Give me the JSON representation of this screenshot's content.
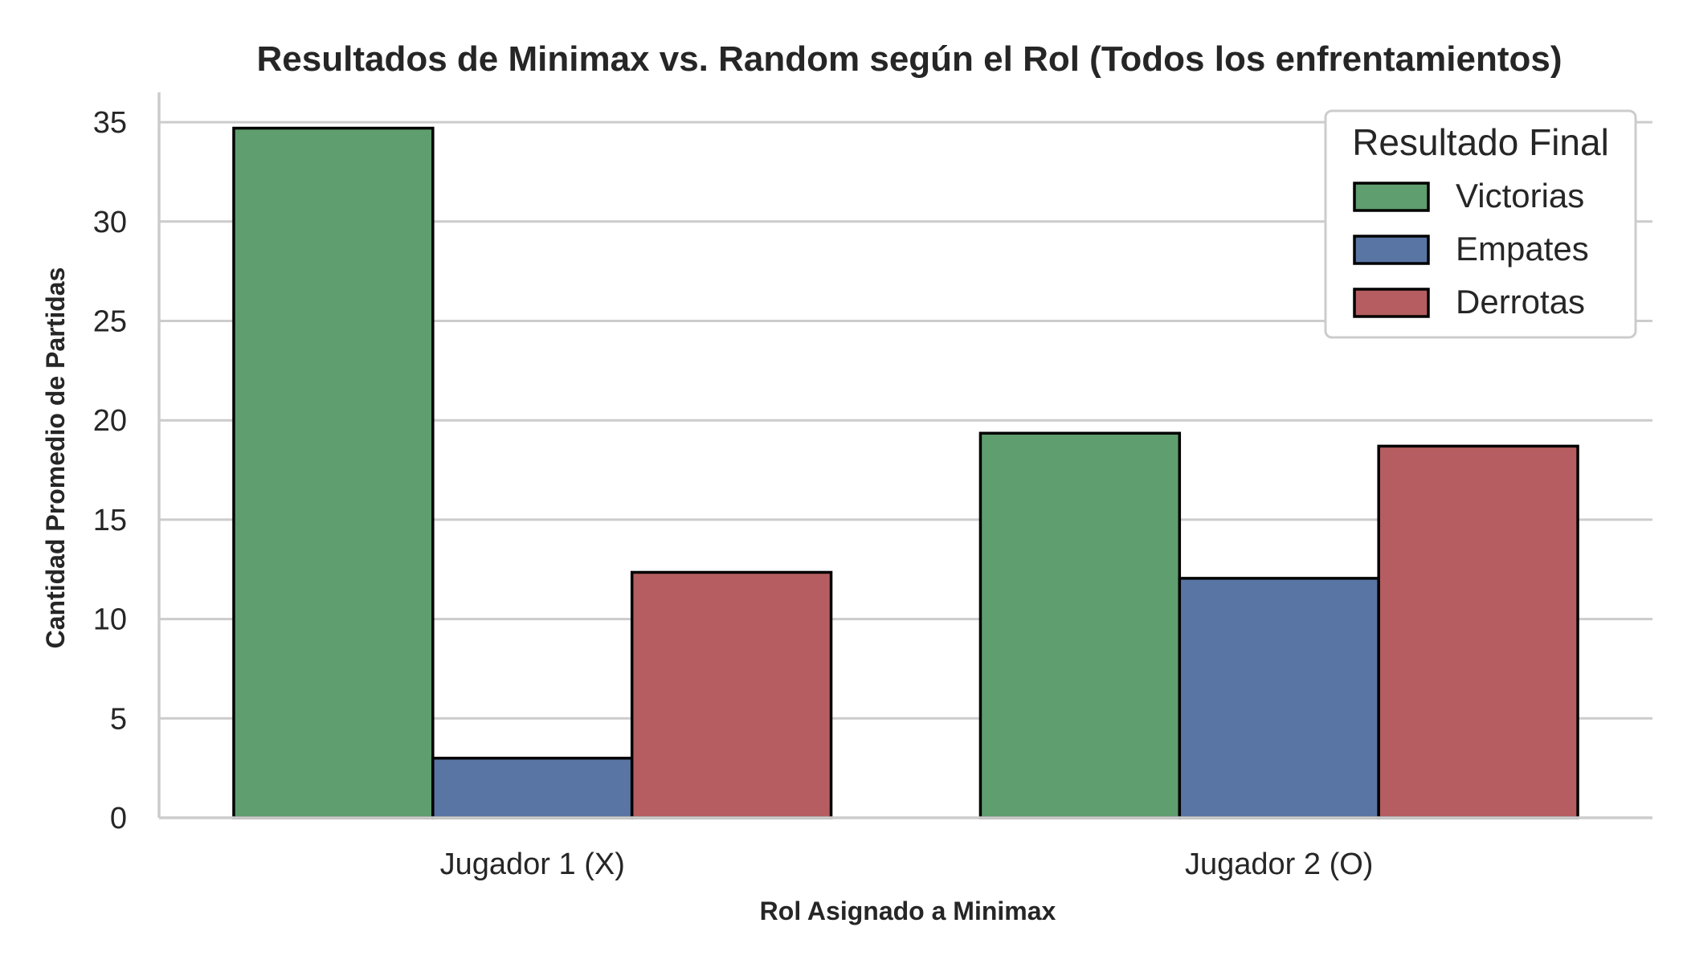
{
  "chart_data": {
    "type": "bar",
    "title": "Resultados de Minimax vs. Random según el Rol (Todos los enfrentamientos)",
    "xlabel": "Rol Asignado a Minimax",
    "ylabel": "Cantidad Promedio de Partidas",
    "categories": [
      "Jugador 1 (X)",
      "Jugador 2 (O)"
    ],
    "series": [
      {
        "name": "Victorias",
        "values": [
          34.7,
          19.35
        ],
        "color": "#5f9e6e"
      },
      {
        "name": "Empates",
        "values": [
          3.0,
          12.05
        ],
        "color": "#5975a4"
      },
      {
        "name": "Derrotas",
        "values": [
          12.35,
          18.7
        ],
        "color": "#b55d60"
      }
    ],
    "ylim": [
      0,
      36.5
    ],
    "yticks": [
      0,
      5,
      10,
      15,
      20,
      25,
      30,
      35
    ],
    "grid": "horizontal",
    "legend": {
      "title": "Resultado Final",
      "placement": "top-right"
    }
  }
}
